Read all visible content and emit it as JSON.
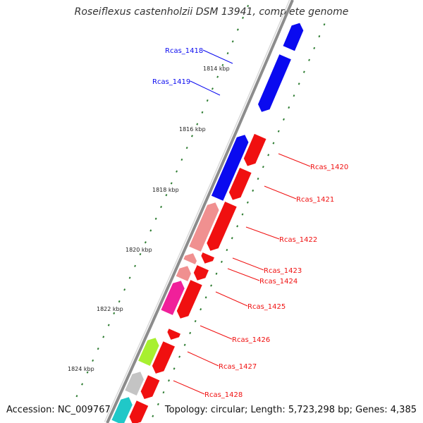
{
  "title": "Roseiflexus castenholzii DSM 13941, complete genome",
  "footer": {
    "accession": "Accession: NC_009767",
    "topology": "Topology: circular; Length: 5,723,298 bp; Genes: 4,385"
  },
  "colors": {
    "backbone": "#8c8c8c",
    "tick": "#2e7d32",
    "blue": "#0a0af0",
    "red": "#f01010",
    "pink": "#f09090",
    "magenta": "#f0209a",
    "lime": "#a8f030",
    "gray": "#c4c4c4",
    "cyan": "#20c8c8"
  },
  "scale_labels": [
    "1814 kbp",
    "1816 kbp",
    "1818 kbp",
    "1820 kbp",
    "1822 kbp",
    "1824 kbp"
  ],
  "gene_labels": [
    {
      "text": "Rcas_1418",
      "color": "blue"
    },
    {
      "text": "Rcas_1419",
      "color": "blue"
    },
    {
      "text": "Rcas_1420",
      "color": "red"
    },
    {
      "text": "Rcas_1421",
      "color": "red"
    },
    {
      "text": "Rcas_1422",
      "color": "red"
    },
    {
      "text": "Rcas_1423",
      "color": "red"
    },
    {
      "text": "Rcas_1424",
      "color": "red"
    },
    {
      "text": "Rcas_1425",
      "color": "red"
    },
    {
      "text": "Rcas_1426",
      "color": "red"
    },
    {
      "text": "Rcas_1427",
      "color": "red"
    },
    {
      "text": "Rcas_1428",
      "color": "red"
    }
  ]
}
